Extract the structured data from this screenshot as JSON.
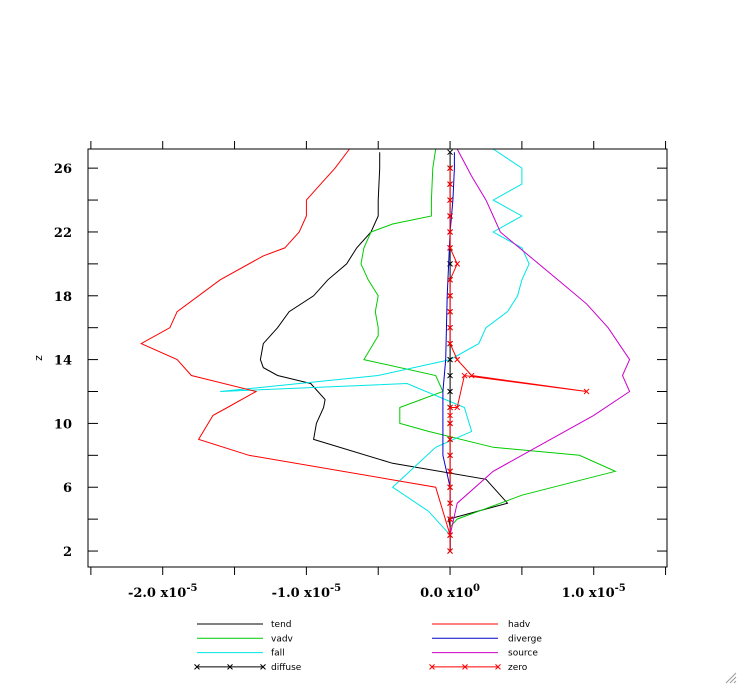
{
  "chart_data": {
    "type": "line",
    "ylabel": "z",
    "xlabel": "",
    "title": "",
    "xlim": [
      -2.52e-05,
      1.51e-05
    ],
    "ylim": [
      1,
      27.2
    ],
    "x_ticks": [
      {
        "value": -2e-05,
        "mantissa": "-2.0",
        "exponent": "-5"
      },
      {
        "value": -1e-05,
        "mantissa": "-1.0",
        "exponent": "-5"
      },
      {
        "value": 0.0,
        "mantissa": "0.0",
        "exponent": "0"
      },
      {
        "value": 1e-05,
        "mantissa": "1.0",
        "exponent": "-5"
      }
    ],
    "y_ticks": [
      2,
      6,
      10,
      14,
      18,
      22,
      26
    ],
    "legend_position": "bottom",
    "series": [
      {
        "name": "tend",
        "color": "#000000",
        "marker": "none",
        "x": [
          0.0,
          0.0,
          -1e-07,
          4e-06,
          2.5e-06,
          -4e-06,
          -9.5e-06,
          -9.3e-06,
          -8.8e-06,
          -8.7e-06,
          -9.7e-06,
          -1.2e-05,
          -1.3e-05,
          -1.32e-05,
          -1.3e-05,
          -1.2e-05,
          -1.12e-05,
          -9.5e-06,
          -8.5e-06,
          -7.2e-06,
          -6.5e-06,
          -5.5e-06,
          -5e-06,
          -5e-06,
          -4.9e-06,
          -4.9e-06
        ],
        "y": [
          2,
          3.5,
          4,
          5,
          6.5,
          7.5,
          9,
          10,
          11,
          11.5,
          12.5,
          13,
          13.5,
          14,
          15,
          16,
          17,
          18,
          19,
          20,
          21,
          22,
          23,
          24,
          26,
          27
        ]
      },
      {
        "name": "vadv",
        "color": "#00cc00",
        "marker": "none",
        "x": [
          0.0,
          0.0,
          5e-07,
          2e-06,
          5e-06,
          1.15e-05,
          9e-06,
          3e-06,
          -1.5e-06,
          -3.5e-06,
          -3.5e-06,
          -5e-07,
          -1e-06,
          -6e-06,
          -5e-06,
          -5e-06,
          -5.2e-06,
          -5e-06,
          -5.7e-06,
          -6.2e-06,
          -6e-06,
          -5.5e-06,
          -4e-06,
          -1.3e-06,
          -1.3e-06,
          -1.2e-06,
          -1e-06
        ],
        "y": [
          2,
          3.5,
          4,
          4.5,
          5.5,
          7,
          8,
          8.5,
          9.5,
          10,
          11,
          12,
          13,
          14,
          15.5,
          16,
          17,
          18,
          19,
          20,
          21,
          22,
          22.5,
          23,
          24,
          26,
          27.2
        ]
      },
      {
        "name": "fall",
        "color": "#00e5e5",
        "marker": "none",
        "x": [
          0.0,
          -1.5e-06,
          -4e-06,
          -1e-06,
          1.5e-06,
          1e-06,
          -3e-06,
          -1.6e-05,
          -5e-06,
          0.0,
          2e-06,
          2.5e-06,
          4e-06,
          4.7e-06,
          5e-06,
          5.5e-06,
          5e-06,
          3e-06,
          5e-06,
          3e-06,
          5e-06,
          5e-06,
          3e-06
        ],
        "y": [
          3,
          4.5,
          6,
          8.5,
          9.5,
          11,
          12.5,
          12,
          13,
          14,
          15,
          16,
          17,
          18,
          19,
          20,
          21,
          22,
          23,
          24,
          25,
          26,
          27.2
        ]
      },
      {
        "name": "diffuse",
        "color": "#000000",
        "marker": "x",
        "x": [
          0.0,
          0.0,
          0.0,
          0.0,
          0.0,
          0.0,
          0.0,
          0.0,
          0.0,
          0.0,
          0.0,
          0.0,
          0.0,
          0.0,
          0.0,
          0.0,
          0.0,
          0.0,
          0.0,
          0.0,
          0.0,
          0.0,
          0.0,
          0.0,
          0.0,
          0.0
        ],
        "y": [
          2,
          3,
          4,
          5,
          6,
          7,
          8,
          9,
          10,
          11,
          12,
          13,
          14,
          15,
          16,
          17,
          18,
          19,
          20,
          21,
          22,
          23,
          24,
          25,
          26,
          27
        ]
      },
      {
        "name": "hadv",
        "color": "#ff0000",
        "marker": "none",
        "x": [
          0.0,
          -1e-06,
          -1.4e-05,
          -1.75e-05,
          -1.65e-05,
          -1.55e-05,
          -1.35e-05,
          -1.8e-05,
          -1.9e-05,
          -2.15e-05,
          -1.95e-05,
          -1.9e-05,
          -1.6e-05,
          -1.3e-05,
          -1.15e-05,
          -1.05e-05,
          -1e-05,
          -1e-05,
          -9e-06,
          -8e-06,
          -7e-06
        ],
        "y": [
          3,
          6,
          8,
          9,
          10.5,
          11,
          12,
          13,
          14,
          15,
          16,
          17,
          19,
          20.5,
          21,
          22,
          23,
          24,
          25,
          26,
          27.2
        ]
      },
      {
        "name": "diverge",
        "color": "#0000cc",
        "marker": "none",
        "x": [
          0.0,
          0.0,
          -5e-07,
          -5e-07,
          -3e-07,
          -2e-07,
          0.0,
          2e-07,
          3e-07,
          3e-07
        ],
        "y": [
          2,
          6,
          8,
          12,
          14,
          18,
          22,
          24,
          26,
          27
        ]
      },
      {
        "name": "source",
        "color": "#cc00cc",
        "marker": "none",
        "x": [
          0.0,
          5e-07,
          3e-06,
          6e-06,
          1e-05,
          1.25e-05,
          1.2e-05,
          1.25e-05,
          1.1e-05,
          9.5e-06,
          7.5e-06,
          5.5e-06,
          3.5e-06,
          3e-06,
          2.5e-06,
          1.5e-06,
          5e-07
        ],
        "y": [
          3,
          5,
          7,
          8.5,
          10.5,
          12,
          13,
          14,
          16,
          17.5,
          19,
          20.5,
          22,
          23,
          24,
          25.5,
          27.2
        ]
      },
      {
        "name": "zero",
        "color": "#ff0000",
        "marker": "x",
        "x": [
          0.0,
          0.0,
          0.0,
          0.0,
          0.0,
          0.0,
          0.0,
          0.0,
          0.0,
          0.0,
          0.0,
          5e-07,
          1e-06,
          9.5e-06,
          1.5e-06,
          5e-07,
          0.0,
          0.0,
          0.0,
          0.0,
          0.0,
          5e-07,
          0.0,
          0.0,
          0.0,
          0.0,
          0.0,
          0.0
        ],
        "y": [
          2,
          3,
          4,
          5,
          6,
          7,
          8,
          9,
          10,
          10.5,
          11,
          11,
          13,
          12,
          13,
          14,
          15,
          16,
          17,
          18,
          19,
          20,
          21,
          22,
          23,
          24,
          25,
          26
        ]
      }
    ]
  },
  "legend": {
    "left": [
      "tend",
      "vadv",
      "fall",
      "diffuse"
    ],
    "right": [
      "hadv",
      "diverge",
      "source",
      "zero"
    ]
  }
}
